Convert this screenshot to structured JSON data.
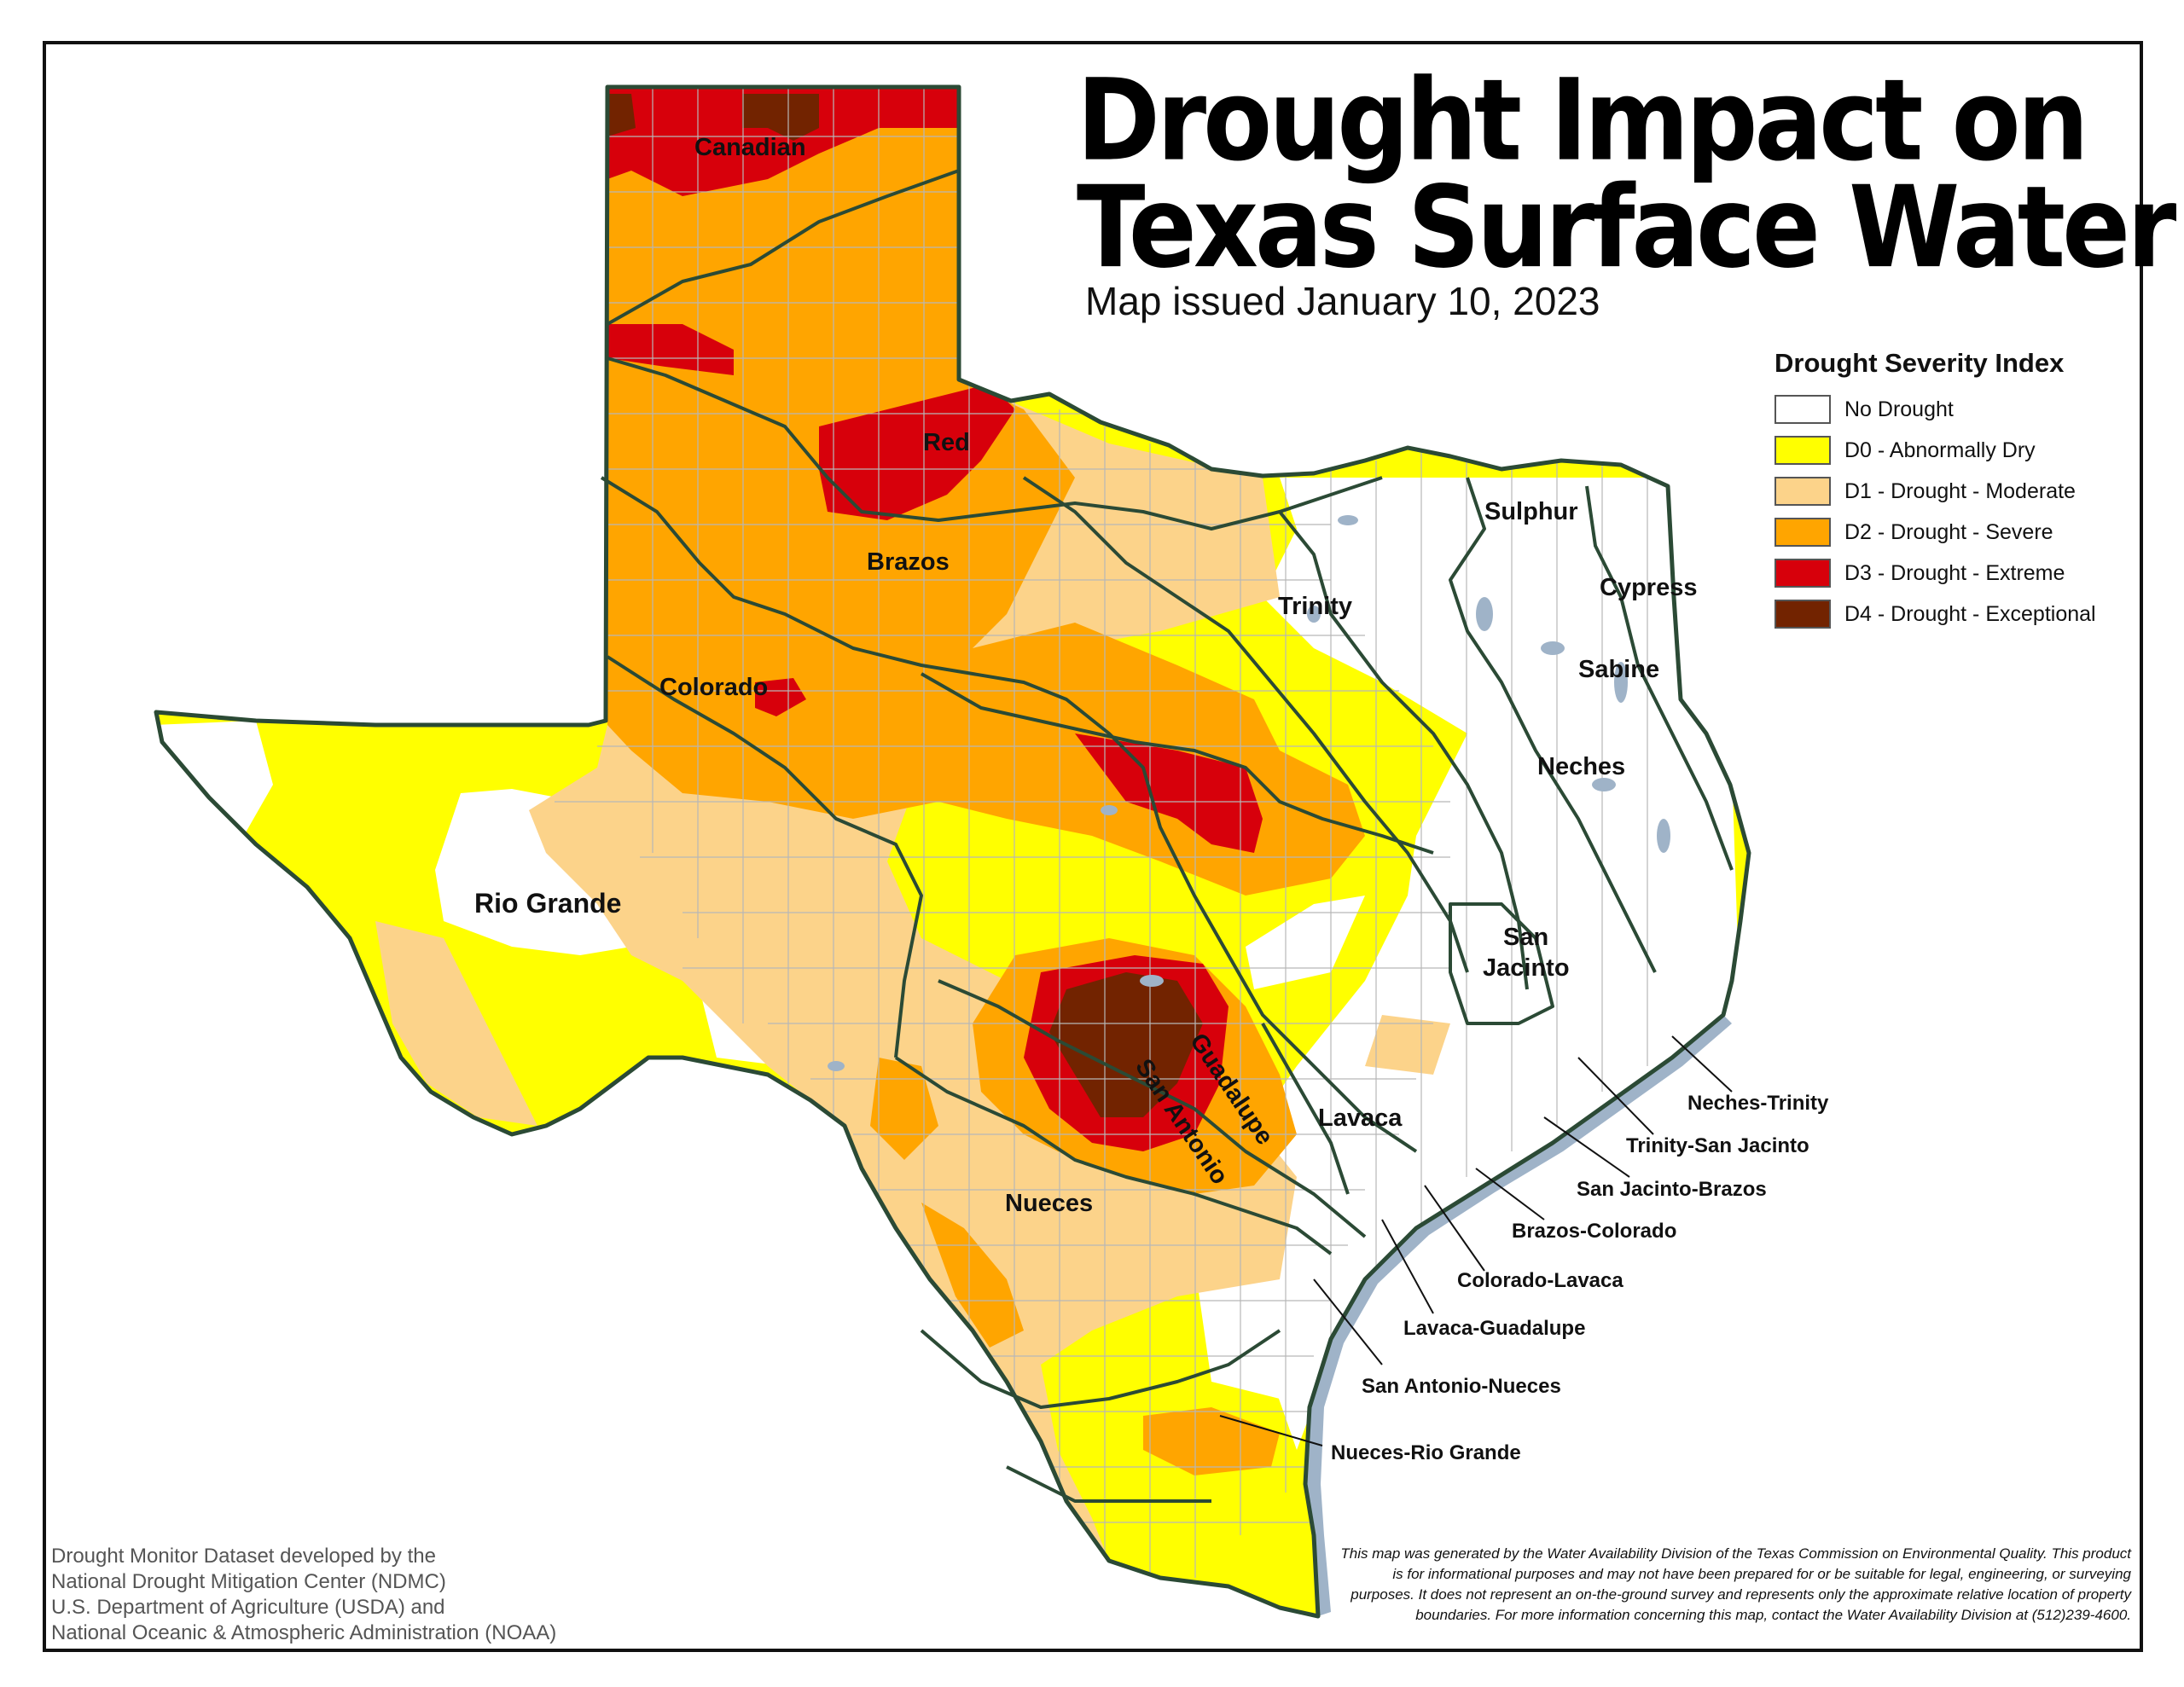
{
  "title_line1": "Drought Impact on",
  "title_line2": "Texas Surface Water",
  "subtitle": "Map issued January 10, 2023",
  "legend": {
    "title": "Drought Severity Index",
    "items": [
      {
        "label": "No Drought",
        "color": "#ffffff"
      },
      {
        "label": "D0 - Abnormally Dry",
        "color": "#ffff00"
      },
      {
        "label": "D1 - Drought - Moderate",
        "color": "#fcd38a"
      },
      {
        "label": "D2 - Drought - Severe",
        "color": "#ffa500"
      },
      {
        "label": "D3 - Drought - Extreme",
        "color": "#d7000b"
      },
      {
        "label": "D4 - Drought - Exceptional",
        "color": "#722300"
      }
    ]
  },
  "basins": {
    "canadian": "Canadian",
    "red": "Red",
    "brazos": "Brazos",
    "colorado": "Colorado",
    "rio_grande": "Rio Grande",
    "trinity": "Trinity",
    "sulphur": "Sulphur",
    "cypress": "Cypress",
    "sabine": "Sabine",
    "neches": "Neches",
    "san_jacinto_1": "San",
    "san_jacinto_2": "Jacinto",
    "guadalupe": "Guadalupe",
    "san_antonio": "San Antonio",
    "lavaca": "Lavaca",
    "nueces": "Nueces"
  },
  "coastal_basins": {
    "neches_trinity": "Neches-Trinity",
    "trinity_san_jacinto": "Trinity-San Jacinto",
    "san_jacinto_brazos": "San Jacinto-Brazos",
    "brazos_colorado": "Brazos-Colorado",
    "colorado_lavaca": "Colorado-Lavaca",
    "lavaca_guadalupe": "Lavaca-Guadalupe",
    "san_antonio_nueces": "San Antonio-Nueces",
    "nueces_rio_grande": "Nueces-Rio Grande"
  },
  "credit": {
    "line1": "Drought Monitor Dataset developed by the",
    "line2": "National Drought Mitigation Center (NDMC)",
    "line3": "U.S. Department of Agriculture (USDA) and",
    "line4": "National Oceanic & Atmospheric Administration (NOAA)"
  },
  "disclaimer": "This map was generated by the Water Availability Division of the Texas Commission on Environmental Quality. This product is for informational purposes and may not have been prepared for or be suitable for legal, engineering, or surveying purposes. It does not represent an on-the-ground survey and represents only the approximate relative location of property boundaries. For more information concerning this map, contact the Water Availability Division at (512)239-4600."
}
